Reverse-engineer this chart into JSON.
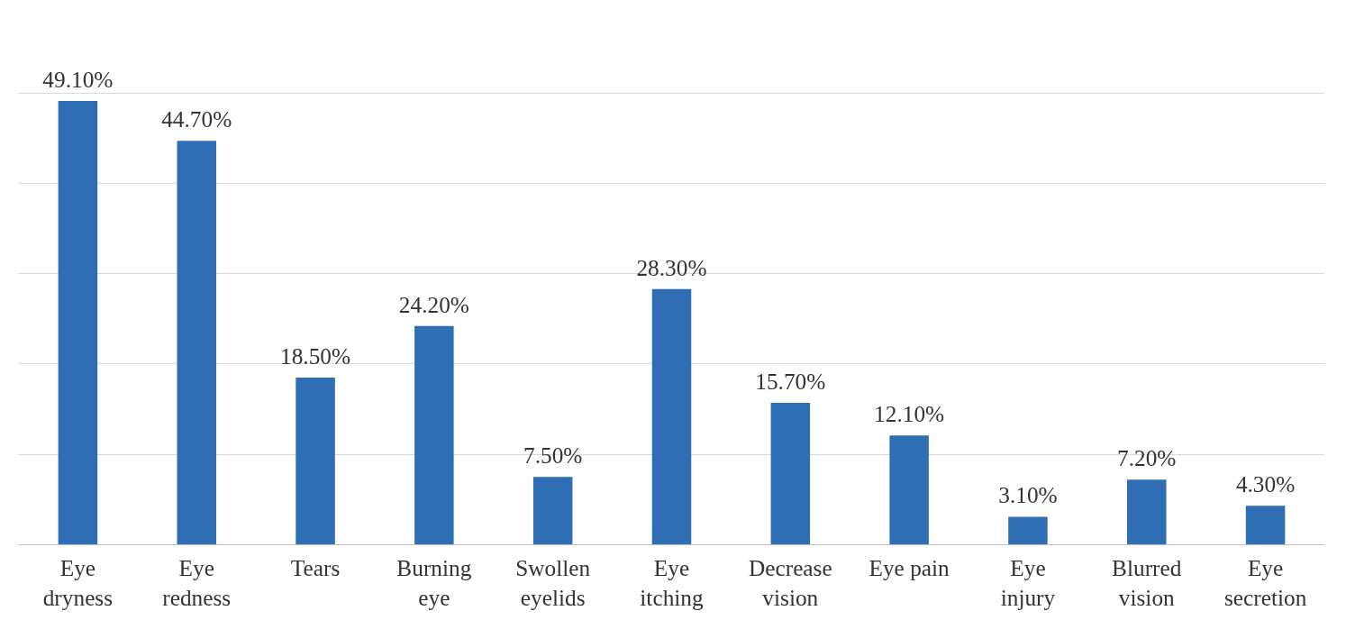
{
  "chart_data": {
    "type": "bar",
    "categories": [
      "Eye dryness",
      "Eye redness",
      "Tears",
      "Burning eye",
      "Swollen eyelids",
      "Eye itching",
      "Decrease vision",
      "Eye pain",
      "Eye injury",
      "Blurred vision",
      "Eye secretion"
    ],
    "values": [
      49.1,
      44.7,
      18.5,
      24.2,
      7.5,
      28.3,
      15.7,
      12.1,
      3.1,
      7.2,
      4.3
    ],
    "value_labels": [
      "49.10%",
      "44.70%",
      "18.50%",
      "24.20%",
      "7.50%",
      "28.30%",
      "15.70%",
      "12.10%",
      "3.10%",
      "7.20%",
      "4.30%"
    ],
    "color": "#2f6db5",
    "tick_labels": "x",
    "grid": "y"
  }
}
